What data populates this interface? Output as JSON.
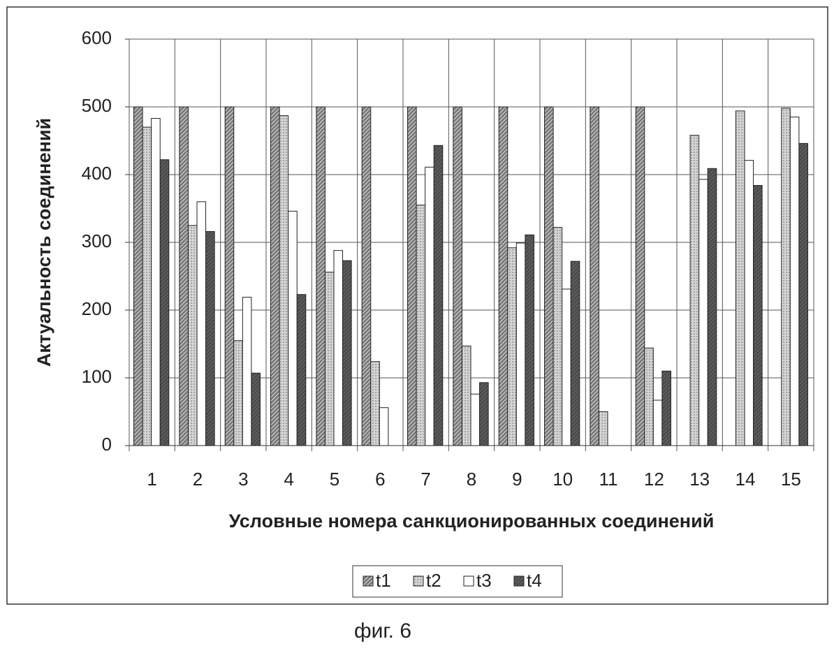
{
  "chart_data": {
    "type": "bar",
    "y_label": "Актуальность соединений",
    "x_label": "Условные номера санкционированных соединений",
    "caption": "фиг. 6",
    "categories": [
      "1",
      "2",
      "3",
      "4",
      "5",
      "6",
      "7",
      "8",
      "9",
      "10",
      "11",
      "12",
      "13",
      "14",
      "15"
    ],
    "series": [
      {
        "name": "t1",
        "color": "#7a7a7a",
        "values": [
          500,
          500,
          500,
          500,
          500,
          500,
          500,
          500,
          500,
          500,
          500,
          500,
          0,
          0,
          0
        ]
      },
      {
        "name": "t2",
        "color": "#d4d4d4",
        "values": [
          470,
          325,
          155,
          487,
          256,
          124,
          355,
          147,
          292,
          322,
          50,
          144,
          458,
          494,
          498
        ]
      },
      {
        "name": "t3",
        "color": "#ffffff",
        "values": [
          483,
          360,
          219,
          346,
          288,
          56,
          411,
          76,
          299,
          231,
          0,
          67,
          393,
          421,
          485
        ]
      },
      {
        "name": "t4",
        "color": "#5a5a5a",
        "values": [
          422,
          316,
          107,
          223,
          273,
          0,
          443,
          93,
          311,
          272,
          0,
          110,
          409,
          384,
          446
        ]
      }
    ],
    "ylim": [
      0,
      600
    ],
    "yticks": [
      0,
      100,
      200,
      300,
      400,
      500,
      600
    ],
    "grid": true,
    "legend": "bottom"
  }
}
